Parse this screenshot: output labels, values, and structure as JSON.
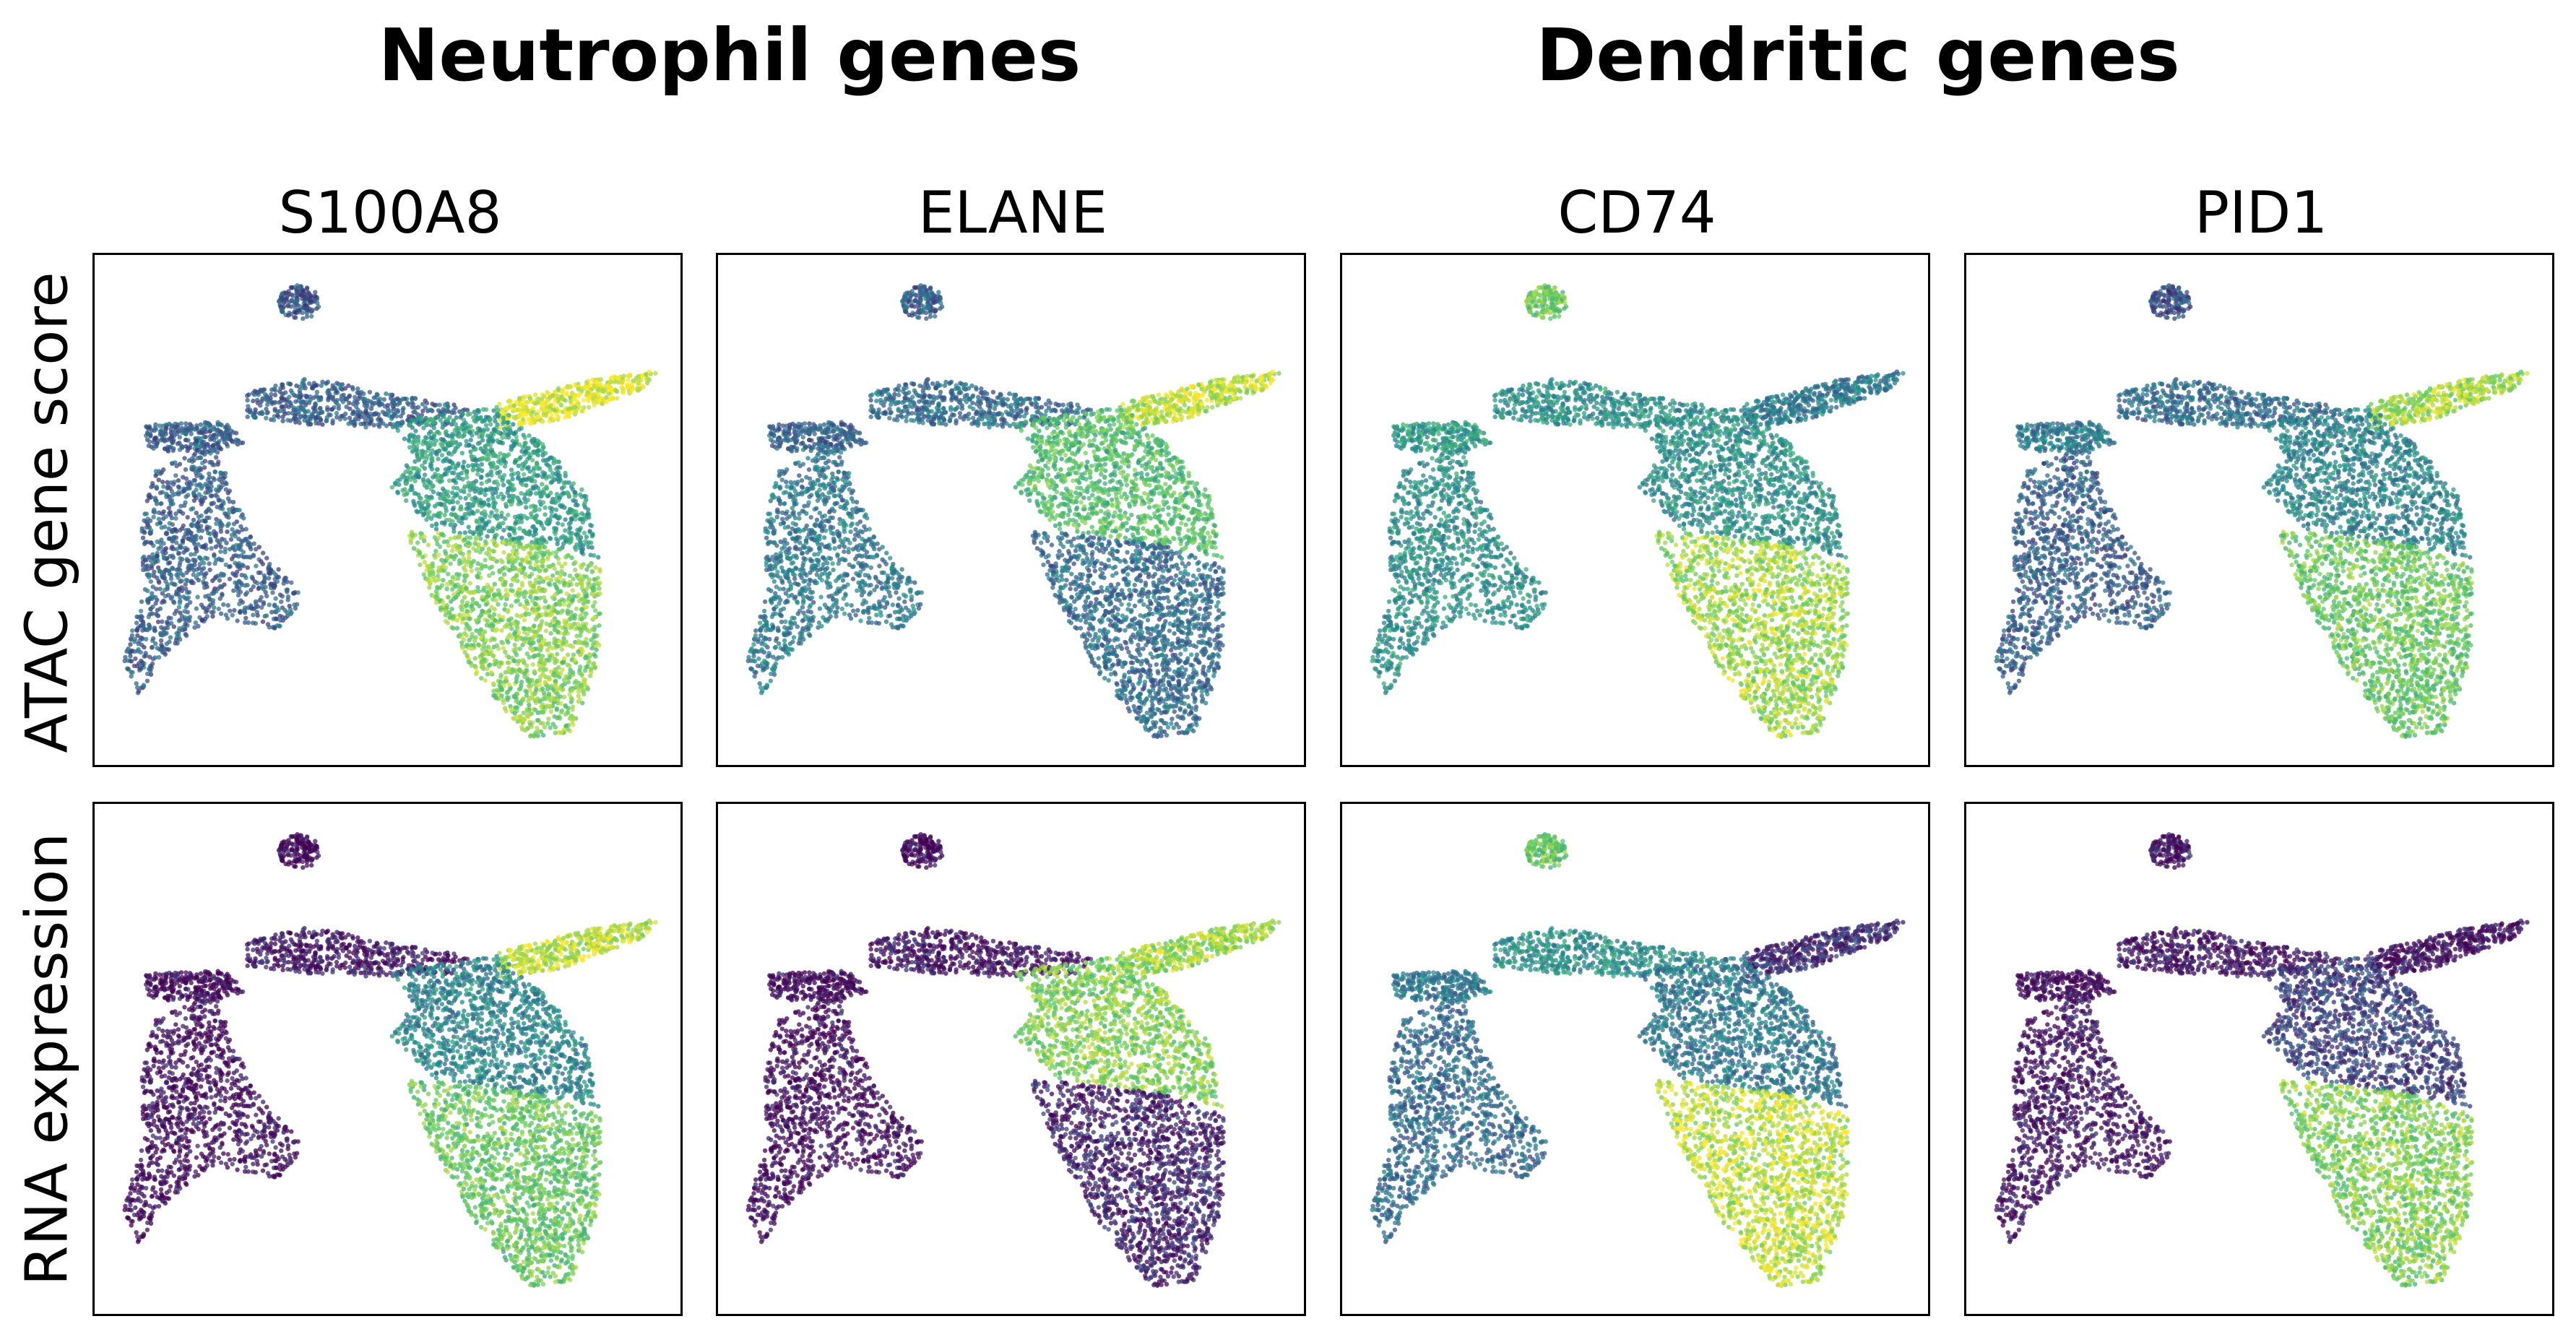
{
  "figure": {
    "group_titles": [
      "Neutrophil genes",
      "Dendritic genes"
    ]
  },
  "chart_data": {
    "type": "scatter",
    "embedding": "umap-style scatter of cells, identical layout in every panel",
    "columns": [
      "S100A8",
      "ELANE",
      "CD74",
      "PID1"
    ],
    "rows": [
      "ATAC gene score",
      "RNA expression"
    ],
    "colormap": [
      "#440154",
      "#3b528b",
      "#21908d",
      "#5dc963",
      "#fde725"
    ],
    "grid": false,
    "axes_ticks": false,
    "panels": [
      {
        "row": "ATAC gene score",
        "column": "S100A8",
        "region_levels": {
          "top_island": 0.25,
          "upper_ridge": 0.3,
          "left_cluster": 0.3,
          "lower_left_lineage": 0.3,
          "right_arm": 0.95,
          "main_mass_upper": 0.55,
          "main_mass_lower": 0.8
        }
      },
      {
        "row": "ATAC gene score",
        "column": "ELANE",
        "region_levels": {
          "top_island": 0.3,
          "upper_ridge": 0.35,
          "left_cluster": 0.3,
          "lower_left_lineage": 0.4,
          "right_arm": 0.9,
          "main_mass_upper": 0.7,
          "main_mass_lower": 0.35
        }
      },
      {
        "row": "ATAC gene score",
        "column": "CD74",
        "region_levels": {
          "top_island": 0.75,
          "upper_ridge": 0.5,
          "left_cluster": 0.55,
          "lower_left_lineage": 0.5,
          "right_arm": 0.4,
          "main_mass_upper": 0.5,
          "main_mass_lower": 0.85
        }
      },
      {
        "row": "ATAC gene score",
        "column": "PID1",
        "region_levels": {
          "top_island": 0.25,
          "upper_ridge": 0.35,
          "left_cluster": 0.4,
          "lower_left_lineage": 0.3,
          "right_arm": 0.85,
          "main_mass_upper": 0.45,
          "main_mass_lower": 0.75
        }
      },
      {
        "row": "RNA expression",
        "column": "S100A8",
        "region_levels": {
          "top_island": 0.0,
          "upper_ridge": 0.05,
          "left_cluster": 0.0,
          "lower_left_lineage": 0.02,
          "right_arm": 0.9,
          "main_mass_upper": 0.45,
          "main_mass_lower": 0.75
        }
      },
      {
        "row": "RNA expression",
        "column": "ELANE",
        "region_levels": {
          "top_island": 0.0,
          "upper_ridge": 0.05,
          "left_cluster": 0.0,
          "lower_left_lineage": 0.02,
          "right_arm": 0.85,
          "main_mass_upper": 0.8,
          "main_mass_lower": 0.1
        }
      },
      {
        "row": "RNA expression",
        "column": "CD74",
        "region_levels": {
          "top_island": 0.75,
          "upper_ridge": 0.5,
          "left_cluster": 0.4,
          "lower_left_lineage": 0.35,
          "right_arm": 0.15,
          "main_mass_upper": 0.4,
          "main_mass_lower": 0.9
        }
      },
      {
        "row": "RNA expression",
        "column": "PID1",
        "region_levels": {
          "top_island": 0.05,
          "upper_ridge": 0.05,
          "left_cluster": 0.0,
          "lower_left_lineage": 0.05,
          "right_arm": 0.05,
          "main_mass_upper": 0.2,
          "main_mass_lower": 0.8
        }
      }
    ]
  }
}
